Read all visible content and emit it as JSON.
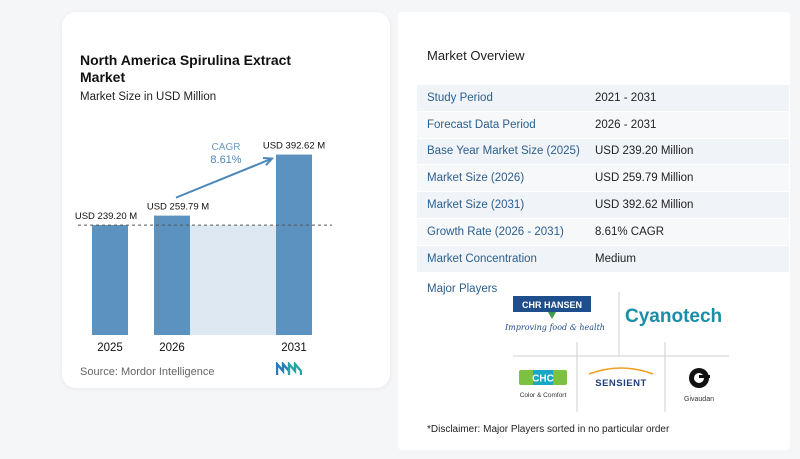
{
  "chart_card": {
    "title": "North America Spirulina Extract Market",
    "subtitle": "Market Size in USD Million",
    "source": "Source:  Mordor Intelligence"
  },
  "chart_data": {
    "type": "bar",
    "categories": [
      "2025",
      "2026",
      "2031"
    ],
    "values": [
      239.2,
      259.79,
      392.62
    ],
    "data_labels": [
      "USD 239.20 M",
      "USD 259.79 M",
      "USD 392.62 M"
    ],
    "annotation": {
      "label": "CAGR",
      "value": "8.61%"
    },
    "ylim": [
      0,
      420
    ],
    "colors": {
      "bar": "#5b92bf",
      "bar_top": "#4d86b5",
      "shade": "#dde8f2",
      "arrow": "#4b87b8",
      "dashed": "#555555"
    }
  },
  "overview": {
    "title": "Market Overview",
    "rows": [
      {
        "key": "Study Period",
        "value": "2021 - 2031"
      },
      {
        "key": "Forecast Data Period",
        "value": "2026 - 2031"
      },
      {
        "key": "Base Year Market Size (2025)",
        "value": "USD 239.20 Million"
      },
      {
        "key": "Market Size (2026)",
        "value": "USD 259.79 Million"
      },
      {
        "key": "Market Size (2031)",
        "value": "USD 392.62 Million"
      },
      {
        "key": "Growth Rate (2026 - 2031)",
        "value": "8.61% CAGR"
      },
      {
        "key": "Market Concentration",
        "value": "Medium"
      }
    ],
    "major_players_label": "Major Players",
    "players": {
      "chr_hansen": "CHR HANSEN",
      "chr_tagline": "Improving food & health",
      "cyanotech": "Cyanotech",
      "chc": "CHC",
      "chc_sub": "Color & Comfort",
      "sensient": "SENSIENT",
      "givaudan": "Givaudan"
    },
    "disclaimer": "*Disclaimer: Major Players sorted in no particular order"
  }
}
